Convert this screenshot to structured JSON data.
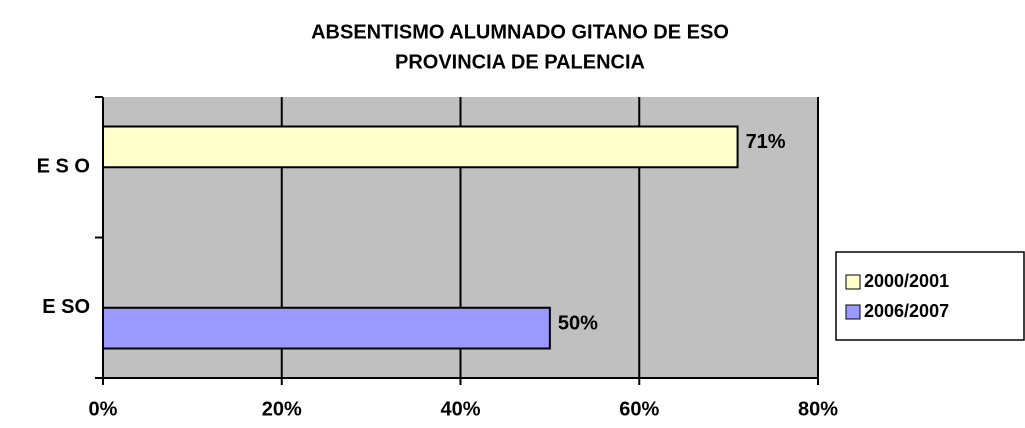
{
  "chart_data": {
    "type": "bar",
    "orientation": "horizontal",
    "title": [
      "ABSENTISMO ALUMNADO GITANO DE ESO",
      "PROVINCIA DE PALENCIA"
    ],
    "categories": [
      "E S O",
      "E SO"
    ],
    "series": [
      {
        "name": "2000/2001",
        "color": "#ffffcc",
        "values": [
          71,
          null
        ],
        "value_labels": [
          "71%",
          null
        ]
      },
      {
        "name": "2006/2007",
        "color": "#9999ff",
        "values": [
          null,
          50
        ],
        "value_labels": [
          null,
          "50%"
        ]
      }
    ],
    "xlim": [
      0,
      80
    ],
    "xticks": [
      {
        "value": 0,
        "label": "0%"
      },
      {
        "value": 20,
        "label": "20%"
      },
      {
        "value": 40,
        "label": "40%"
      },
      {
        "value": 60,
        "label": "60%"
      },
      {
        "value": 80,
        "label": "80%"
      }
    ],
    "grid": true,
    "legend": "right"
  }
}
